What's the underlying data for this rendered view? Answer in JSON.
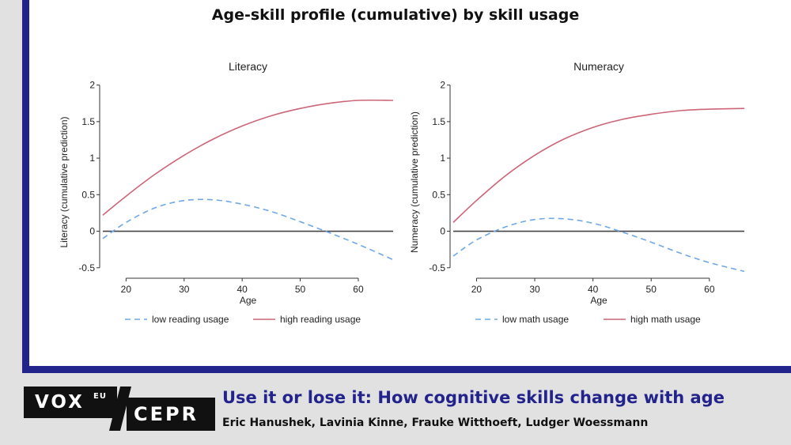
{
  "title": "Age-skill profile (cumulative) by skill usage",
  "footer": {
    "logo_primary": "VOX",
    "logo_superscript": "EU",
    "logo_secondary": "CEPR",
    "article_title": "Use it or lose it: How cognitive skills change with age",
    "authors": "Eric Hanushek, Lavinia Kinne, Frauke Witthoeft, Ludger Woessmann"
  },
  "colors": {
    "low": "#6fa8e6",
    "high": "#cc6677",
    "frame": "#23238c"
  },
  "chart_data": [
    {
      "type": "line",
      "title": "Literacy",
      "xlabel": "Age",
      "ylabel": "Literacy (cumulative prediction)",
      "xlim": [
        16,
        66
      ],
      "ylim": [
        -0.6,
        2.05
      ],
      "xticks": [
        20,
        30,
        40,
        50,
        60
      ],
      "yticks": [
        -0.5,
        0,
        0.5,
        1,
        1.5,
        2
      ],
      "ytick_labels": [
        "-0.5",
        "0",
        "0.5",
        "1",
        "1.5",
        "2"
      ],
      "reference_line_y": 0,
      "legend": "bottom",
      "series": [
        {
          "name": "low reading usage",
          "style": "dashed",
          "x": [
            16,
            20,
            25,
            30,
            35,
            40,
            45,
            50,
            55,
            60,
            66
          ],
          "y": [
            -0.1,
            0.12,
            0.32,
            0.42,
            0.43,
            0.37,
            0.27,
            0.13,
            -0.02,
            -0.18,
            -0.39
          ]
        },
        {
          "name": "high reading usage",
          "style": "solid",
          "x": [
            16,
            20,
            25,
            30,
            35,
            40,
            45,
            50,
            55,
            60,
            66
          ],
          "y": [
            0.22,
            0.48,
            0.78,
            1.04,
            1.26,
            1.44,
            1.58,
            1.68,
            1.75,
            1.79,
            1.79
          ]
        }
      ]
    },
    {
      "type": "line",
      "title": "Numeracy",
      "xlabel": "Age",
      "ylabel": "Numeracy (cumulative prediction)",
      "xlim": [
        16,
        66
      ],
      "ylim": [
        -0.6,
        2.05
      ],
      "xticks": [
        20,
        30,
        40,
        50,
        60
      ],
      "yticks": [
        -0.5,
        0,
        0.5,
        1,
        1.5,
        2
      ],
      "ytick_labels": [
        "-0.5",
        "0",
        "0.5",
        "1",
        "1.5",
        "2"
      ],
      "reference_line_y": 0,
      "legend": "bottom",
      "series": [
        {
          "name": "low math usage",
          "style": "dashed",
          "x": [
            16,
            20,
            25,
            30,
            35,
            40,
            45,
            50,
            55,
            60,
            66
          ],
          "y": [
            -0.34,
            -0.12,
            0.06,
            0.16,
            0.17,
            0.11,
            -0.01,
            -0.15,
            -0.3,
            -0.43,
            -0.55
          ]
        },
        {
          "name": "high math usage",
          "style": "solid",
          "x": [
            16,
            20,
            25,
            30,
            35,
            40,
            45,
            50,
            55,
            60,
            66
          ],
          "y": [
            0.12,
            0.42,
            0.76,
            1.04,
            1.26,
            1.42,
            1.53,
            1.6,
            1.65,
            1.67,
            1.68
          ]
        }
      ]
    }
  ]
}
